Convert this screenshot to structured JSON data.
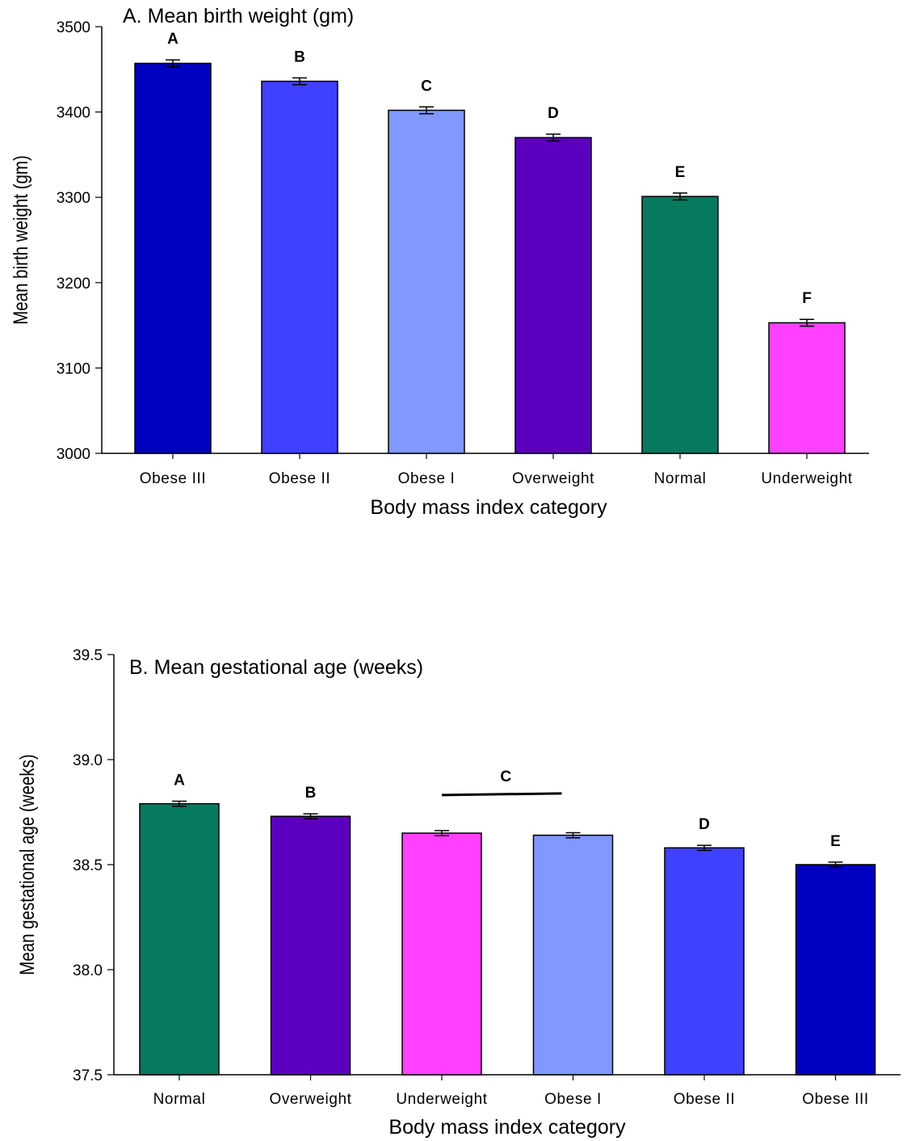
{
  "chart_data": [
    {
      "type": "bar",
      "title": "A. Mean birth weight (gm)",
      "xlabel": "Body mass index category",
      "ylabel": "Mean birth weight (gm)",
      "ylim": [
        3000,
        3500
      ],
      "yticks": [
        "3000",
        "3100",
        "3200",
        "3300",
        "3400",
        "3500"
      ],
      "grid": false,
      "categories": [
        "Obese III",
        "Obese II",
        "Obese I",
        "Overweight",
        "Normal",
        "Underweight"
      ],
      "values": [
        3457,
        3436,
        3402,
        3370,
        3301,
        3153
      ],
      "errors": [
        4,
        4,
        4,
        4,
        4,
        4
      ],
      "significance_letters": [
        "A",
        "B",
        "C",
        "D",
        "E",
        "F"
      ],
      "colors": [
        "#0000c0",
        "#4040ff",
        "#8098ff",
        "#5c00c0",
        "#057a5e",
        "#ff40ff"
      ]
    },
    {
      "type": "bar",
      "title": "B. Mean gestational age (weeks)",
      "xlabel": "Body mass index category",
      "ylabel": "Mean gestational age (weeks)",
      "ylim": [
        37.5,
        39.5
      ],
      "yticks": [
        "37.5",
        "38.0",
        "38.5",
        "39.0",
        "39.5"
      ],
      "grid": false,
      "categories": [
        "Normal",
        "Overweight",
        "Underweight",
        "Obese I",
        "Obese II",
        "Obese III"
      ],
      "values": [
        38.79,
        38.73,
        38.65,
        38.64,
        38.58,
        38.5
      ],
      "errors": [
        0.012,
        0.012,
        0.012,
        0.012,
        0.012,
        0.012
      ],
      "significance_letters": [
        "A",
        "B",
        "",
        "",
        "D",
        "E"
      ],
      "group_letter": "C",
      "colors": [
        "#057a5e",
        "#5c00c0",
        "#ff40ff",
        "#8098ff",
        "#4040ff",
        "#0000c0"
      ]
    }
  ]
}
